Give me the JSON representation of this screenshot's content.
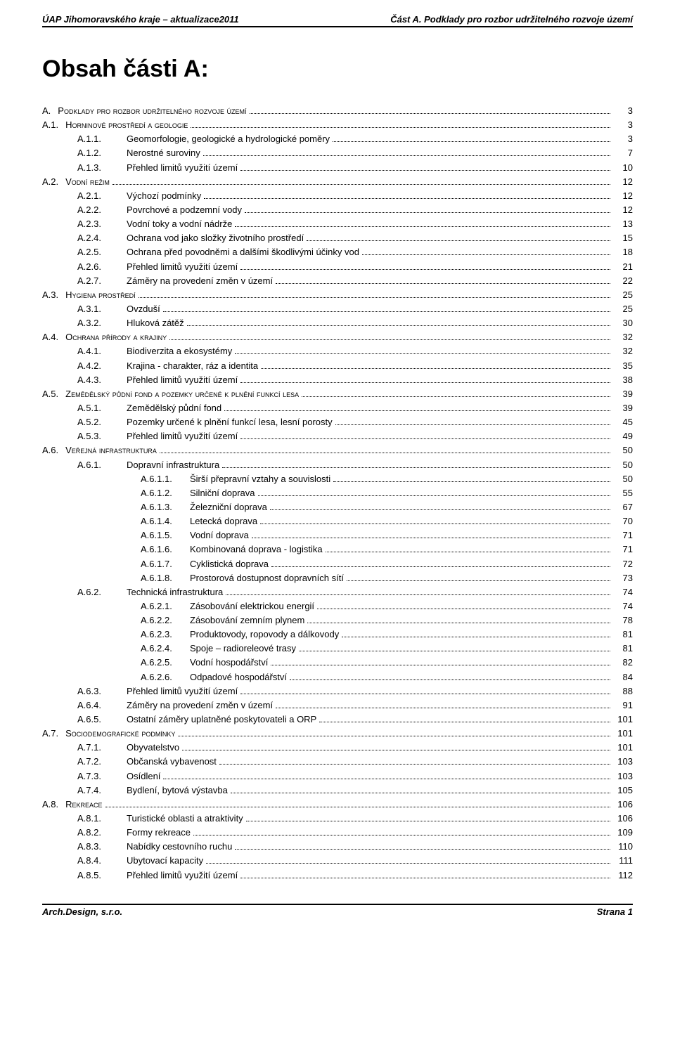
{
  "header": {
    "left": "ÚAP Jihomoravského kraje – aktualizace2011",
    "right": "Část A. Podklady pro rozbor udržitelného rozvoje území"
  },
  "title": "Obsah části A:",
  "footer": {
    "left": "Arch.Design, s.r.o.",
    "right": "Strana 1"
  },
  "toc": [
    {
      "level": 1,
      "num": "A.",
      "label": "Podklady pro rozbor udržitelného rozvoje území",
      "page": "3"
    },
    {
      "level": 1,
      "num": "A.1.",
      "label": "Horninové prostředí a geologie",
      "page": "3"
    },
    {
      "level": 2,
      "num": "A.1.1.",
      "label": "Geomorfologie, geologické a hydrologické poměry",
      "page": "3"
    },
    {
      "level": 2,
      "num": "A.1.2.",
      "label": "Nerostné suroviny",
      "page": "7"
    },
    {
      "level": 2,
      "num": "A.1.3.",
      "label": "Přehled limitů využití území",
      "page": "10"
    },
    {
      "level": 1,
      "num": "A.2.",
      "label": "Vodní režim",
      "page": "12"
    },
    {
      "level": 2,
      "num": "A.2.1.",
      "label": "Výchozí podmínky",
      "page": "12"
    },
    {
      "level": 2,
      "num": "A.2.2.",
      "label": "Povrchové a podzemní vody",
      "page": "12"
    },
    {
      "level": 2,
      "num": "A.2.3.",
      "label": "Vodní toky a vodní nádrže",
      "page": "13"
    },
    {
      "level": 2,
      "num": "A.2.4.",
      "label": "Ochrana vod jako složky životního prostředí",
      "page": "15"
    },
    {
      "level": 2,
      "num": "A.2.5.",
      "label": "Ochrana před povodněmi a dalšími škodlivými účinky vod",
      "page": "18"
    },
    {
      "level": 2,
      "num": "A.2.6.",
      "label": "Přehled limitů využití území",
      "page": "21"
    },
    {
      "level": 2,
      "num": "A.2.7.",
      "label": "Záměry na provedení změn v území",
      "page": "22"
    },
    {
      "level": 1,
      "num": "A.3.",
      "label": "Hygiena prostředí",
      "page": "25"
    },
    {
      "level": 2,
      "num": "A.3.1.",
      "label": "Ovzduší",
      "page": "25"
    },
    {
      "level": 2,
      "num": "A.3.2.",
      "label": "Hluková zátěž",
      "page": "30"
    },
    {
      "level": 1,
      "num": "A.4.",
      "label": "Ochrana přírody a krajiny",
      "page": "32"
    },
    {
      "level": 2,
      "num": "A.4.1.",
      "label": "Biodiverzita a ekosystémy",
      "page": "32"
    },
    {
      "level": 2,
      "num": "A.4.2.",
      "label": "Krajina - charakter, ráz a identita",
      "page": "35"
    },
    {
      "level": 2,
      "num": "A.4.3.",
      "label": "Přehled limitů využití území",
      "page": "38"
    },
    {
      "level": 1,
      "num": "A.5.",
      "label": "Zemědělský půdní fond a pozemky určené k plnění funkcí lesa",
      "page": "39"
    },
    {
      "level": 2,
      "num": "A.5.1.",
      "label": "Zemědělský půdní fond",
      "page": "39"
    },
    {
      "level": 2,
      "num": "A.5.2.",
      "label": "Pozemky určené k plnění funkcí lesa, lesní porosty",
      "page": "45"
    },
    {
      "level": 2,
      "num": "A.5.3.",
      "label": "Přehled limitů využití území",
      "page": "49"
    },
    {
      "level": 1,
      "num": "A.6.",
      "label": "Veřejná infrastruktura",
      "page": "50"
    },
    {
      "level": 2,
      "num": "A.6.1.",
      "label": "Dopravní infrastruktura",
      "page": "50"
    },
    {
      "level": 3,
      "num": "A.6.1.1.",
      "label": "Širší přepravní vztahy a souvislosti",
      "page": "50"
    },
    {
      "level": 3,
      "num": "A.6.1.2.",
      "label": "Silniční doprava",
      "page": "55"
    },
    {
      "level": 3,
      "num": "A.6.1.3.",
      "label": "Železniční doprava",
      "page": "67"
    },
    {
      "level": 3,
      "num": "A.6.1.4.",
      "label": "Letecká doprava",
      "page": "70"
    },
    {
      "level": 3,
      "num": "A.6.1.5.",
      "label": "Vodní doprava",
      "page": "71"
    },
    {
      "level": 3,
      "num": "A.6.1.6.",
      "label": "Kombinovaná doprava - logistika",
      "page": "71"
    },
    {
      "level": 3,
      "num": "A.6.1.7.",
      "label": "Cyklistická doprava",
      "page": "72"
    },
    {
      "level": 3,
      "num": "A.6.1.8.",
      "label": "Prostorová dostupnost dopravních sítí",
      "page": "73"
    },
    {
      "level": 2,
      "num": "A.6.2.",
      "label": "Technická infrastruktura",
      "page": "74"
    },
    {
      "level": 3,
      "num": "A.6.2.1.",
      "label": "Zásobování elektrickou energií",
      "page": "74"
    },
    {
      "level": 3,
      "num": "A.6.2.2.",
      "label": "Zásobování zemním plynem",
      "page": "78"
    },
    {
      "level": 3,
      "num": "A.6.2.3.",
      "label": "Produktovody, ropovody a dálkovody",
      "page": "81"
    },
    {
      "level": 3,
      "num": "A.6.2.4.",
      "label": "Spoje – radioreleové trasy",
      "page": "81"
    },
    {
      "level": 3,
      "num": "A.6.2.5.",
      "label": "Vodní hospodářství",
      "page": "82"
    },
    {
      "level": 3,
      "num": "A.6.2.6.",
      "label": "Odpadové hospodářství",
      "page": "84"
    },
    {
      "level": 2,
      "num": "A.6.3.",
      "label": "Přehled limitů využití území",
      "page": "88"
    },
    {
      "level": 2,
      "num": "A.6.4.",
      "label": "Záměry na provedení změn v území",
      "page": "91"
    },
    {
      "level": 2,
      "num": "A.6.5.",
      "label": "Ostatní záměry uplatněné poskytovateli a ORP",
      "page": "101"
    },
    {
      "level": 1,
      "num": "A.7.",
      "label": "Sociodemografické podmínky",
      "page": "101"
    },
    {
      "level": 2,
      "num": "A.7.1.",
      "label": "Obyvatelstvo",
      "page": "101"
    },
    {
      "level": 2,
      "num": "A.7.2.",
      "label": "Občanská vybavenost",
      "page": "103"
    },
    {
      "level": 2,
      "num": "A.7.3.",
      "label": "Osídlení",
      "page": "103"
    },
    {
      "level": 2,
      "num": "A.7.4.",
      "label": "Bydlení, bytová výstavba",
      "page": "105"
    },
    {
      "level": 1,
      "num": "A.8.",
      "label": "Rekreace",
      "page": "106"
    },
    {
      "level": 2,
      "num": "A.8.1.",
      "label": "Turistické oblasti a atraktivity",
      "page": "106"
    },
    {
      "level": 2,
      "num": "A.8.2.",
      "label": "Formy rekreace",
      "page": "109"
    },
    {
      "level": 2,
      "num": "A.8.3.",
      "label": "Nabídky cestovního ruchu",
      "page": "110"
    },
    {
      "level": 2,
      "num": "A.8.4.",
      "label": "Ubytovací kapacity",
      "page": "111"
    },
    {
      "level": 2,
      "num": "A.8.5.",
      "label": "Přehled limitů využití území",
      "page": "112"
    }
  ]
}
